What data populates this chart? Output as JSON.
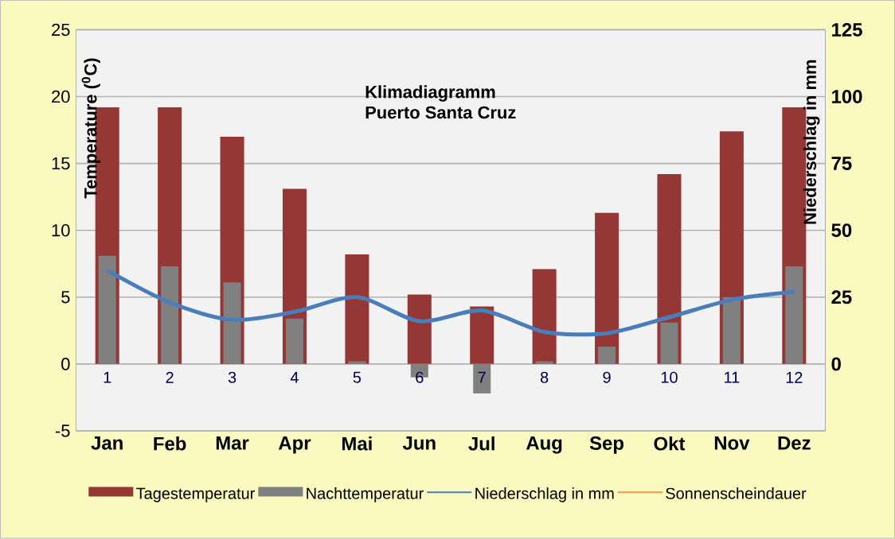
{
  "chart_data": {
    "type": "bar",
    "title": "Klimadiagramm",
    "subtitle": "Puerto Santa Cruz",
    "ylabel": "Temperature ($^{0}$C)",
    "y2label": "Niederschlag in mm",
    "categories": [
      "Jan",
      "Feb",
      "Mar",
      "Apr",
      "Mai",
      "Jun",
      "Jul",
      "Aug",
      "Sep",
      "Okt",
      "Nov",
      "Dez"
    ],
    "series": [
      {
        "name": "Tagestemperatur",
        "color": "#953735",
        "values": [
          19.2,
          19.2,
          17.0,
          13.1,
          8.2,
          5.2,
          4.3,
          7.1,
          11.3,
          14.2,
          17.4,
          19.2
        ]
      },
      {
        "name": "Nachttemperatur",
        "color": "#808080",
        "values": [
          8.1,
          7.3,
          6.1,
          3.4,
          0.2,
          -1.0,
          -2.2,
          0.2,
          1.3,
          3.1,
          5.0,
          7.3
        ]
      },
      {
        "name": "Niederschlag in mm",
        "type": "line",
        "axis": "y2",
        "color": "#4a7ebb",
        "values": [
          35,
          23,
          16.5,
          19.5,
          25,
          16,
          20,
          12,
          11.5,
          17.5,
          24,
          27
        ]
      },
      {
        "name": "Sonnenscheindauer",
        "type": "line",
        "axis": "y2",
        "color": "#f79646",
        "values": [
          null,
          null,
          null,
          null,
          null,
          null,
          null,
          null,
          null,
          null,
          null,
          null
        ]
      }
    ],
    "ylim": [
      -5,
      25
    ],
    "yticks": [
      -5,
      0,
      5,
      10,
      15,
      20,
      25
    ],
    "y2lim": [
      -25,
      125
    ],
    "y2ticks": [
      0,
      25,
      50,
      75,
      100,
      125
    ],
    "annotations": [
      "1",
      "2",
      "3",
      "4",
      "5",
      "6",
      "7",
      "8",
      "9",
      "10",
      "11",
      "12"
    ],
    "grid": "y",
    "legend": "bottom",
    "line_style": "solid",
    "marker": "none"
  }
}
